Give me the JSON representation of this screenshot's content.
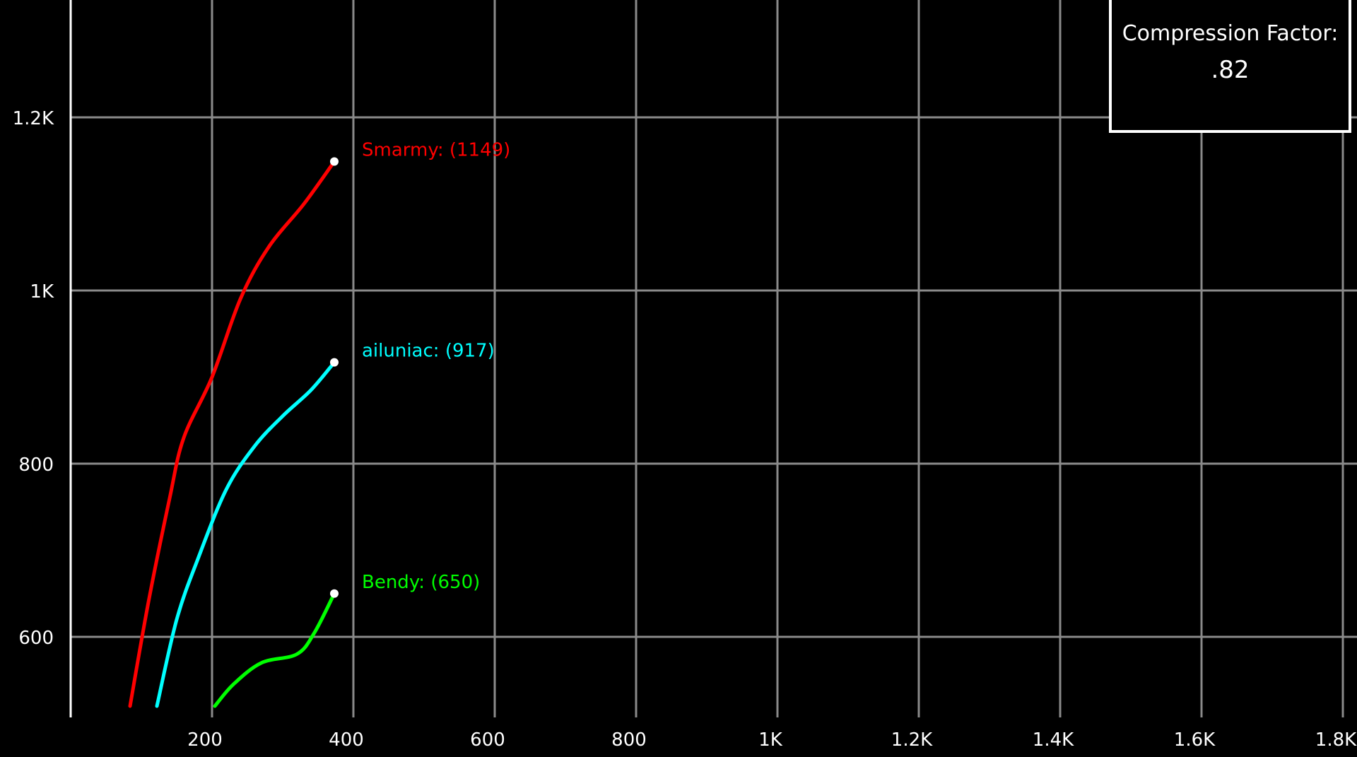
{
  "chart_data": {
    "type": "line",
    "title": "",
    "xlabel": "",
    "ylabel": "",
    "xlim": [
      0,
      1800
    ],
    "ylim": [
      520,
      1335
    ],
    "x_ticks": [
      {
        "value": 200,
        "label": "200"
      },
      {
        "value": 400,
        "label": "400"
      },
      {
        "value": 600,
        "label": "600"
      },
      {
        "value": 800,
        "label": "800"
      },
      {
        "value": 1000,
        "label": "1K"
      },
      {
        "value": 1200,
        "label": "1.2K"
      },
      {
        "value": 1400,
        "label": "1.4K"
      },
      {
        "value": 1600,
        "label": "1.6K"
      },
      {
        "value": 1800,
        "label": "1.8K"
      }
    ],
    "y_ticks": [
      {
        "value": 600,
        "label": "600"
      },
      {
        "value": 800,
        "label": "800"
      },
      {
        "value": 1000,
        "label": "1K"
      },
      {
        "value": 1200,
        "label": "1.2K"
      }
    ],
    "grid": true,
    "series": [
      {
        "name": "Smarmy",
        "label": "Smarmy: (1149)",
        "color": "#ff0000",
        "points": [
          [
            84,
            520
          ],
          [
            110,
            640
          ],
          [
            140,
            760
          ],
          [
            160,
            830
          ],
          [
            200,
            900
          ],
          [
            240,
            990
          ],
          [
            280,
            1050
          ],
          [
            330,
            1100
          ],
          [
            373,
            1149
          ]
        ]
      },
      {
        "name": "ailuniac",
        "label": "ailuniac: (917)",
        "color": "#00ffff",
        "points": [
          [
            122,
            520
          ],
          [
            150,
            620
          ],
          [
            180,
            690
          ],
          [
            220,
            770
          ],
          [
            260,
            820
          ],
          [
            300,
            855
          ],
          [
            340,
            885
          ],
          [
            373,
            917
          ]
        ]
      },
      {
        "name": "Bendy",
        "label": "Bendy: (650)",
        "color": "#00ff00",
        "points": [
          [
            204,
            520
          ],
          [
            230,
            545
          ],
          [
            270,
            570
          ],
          [
            320,
            580
          ],
          [
            345,
            605
          ],
          [
            373,
            650
          ]
        ]
      }
    ]
  },
  "info_box": {
    "label": "Compression Factor:",
    "value": ".82"
  }
}
